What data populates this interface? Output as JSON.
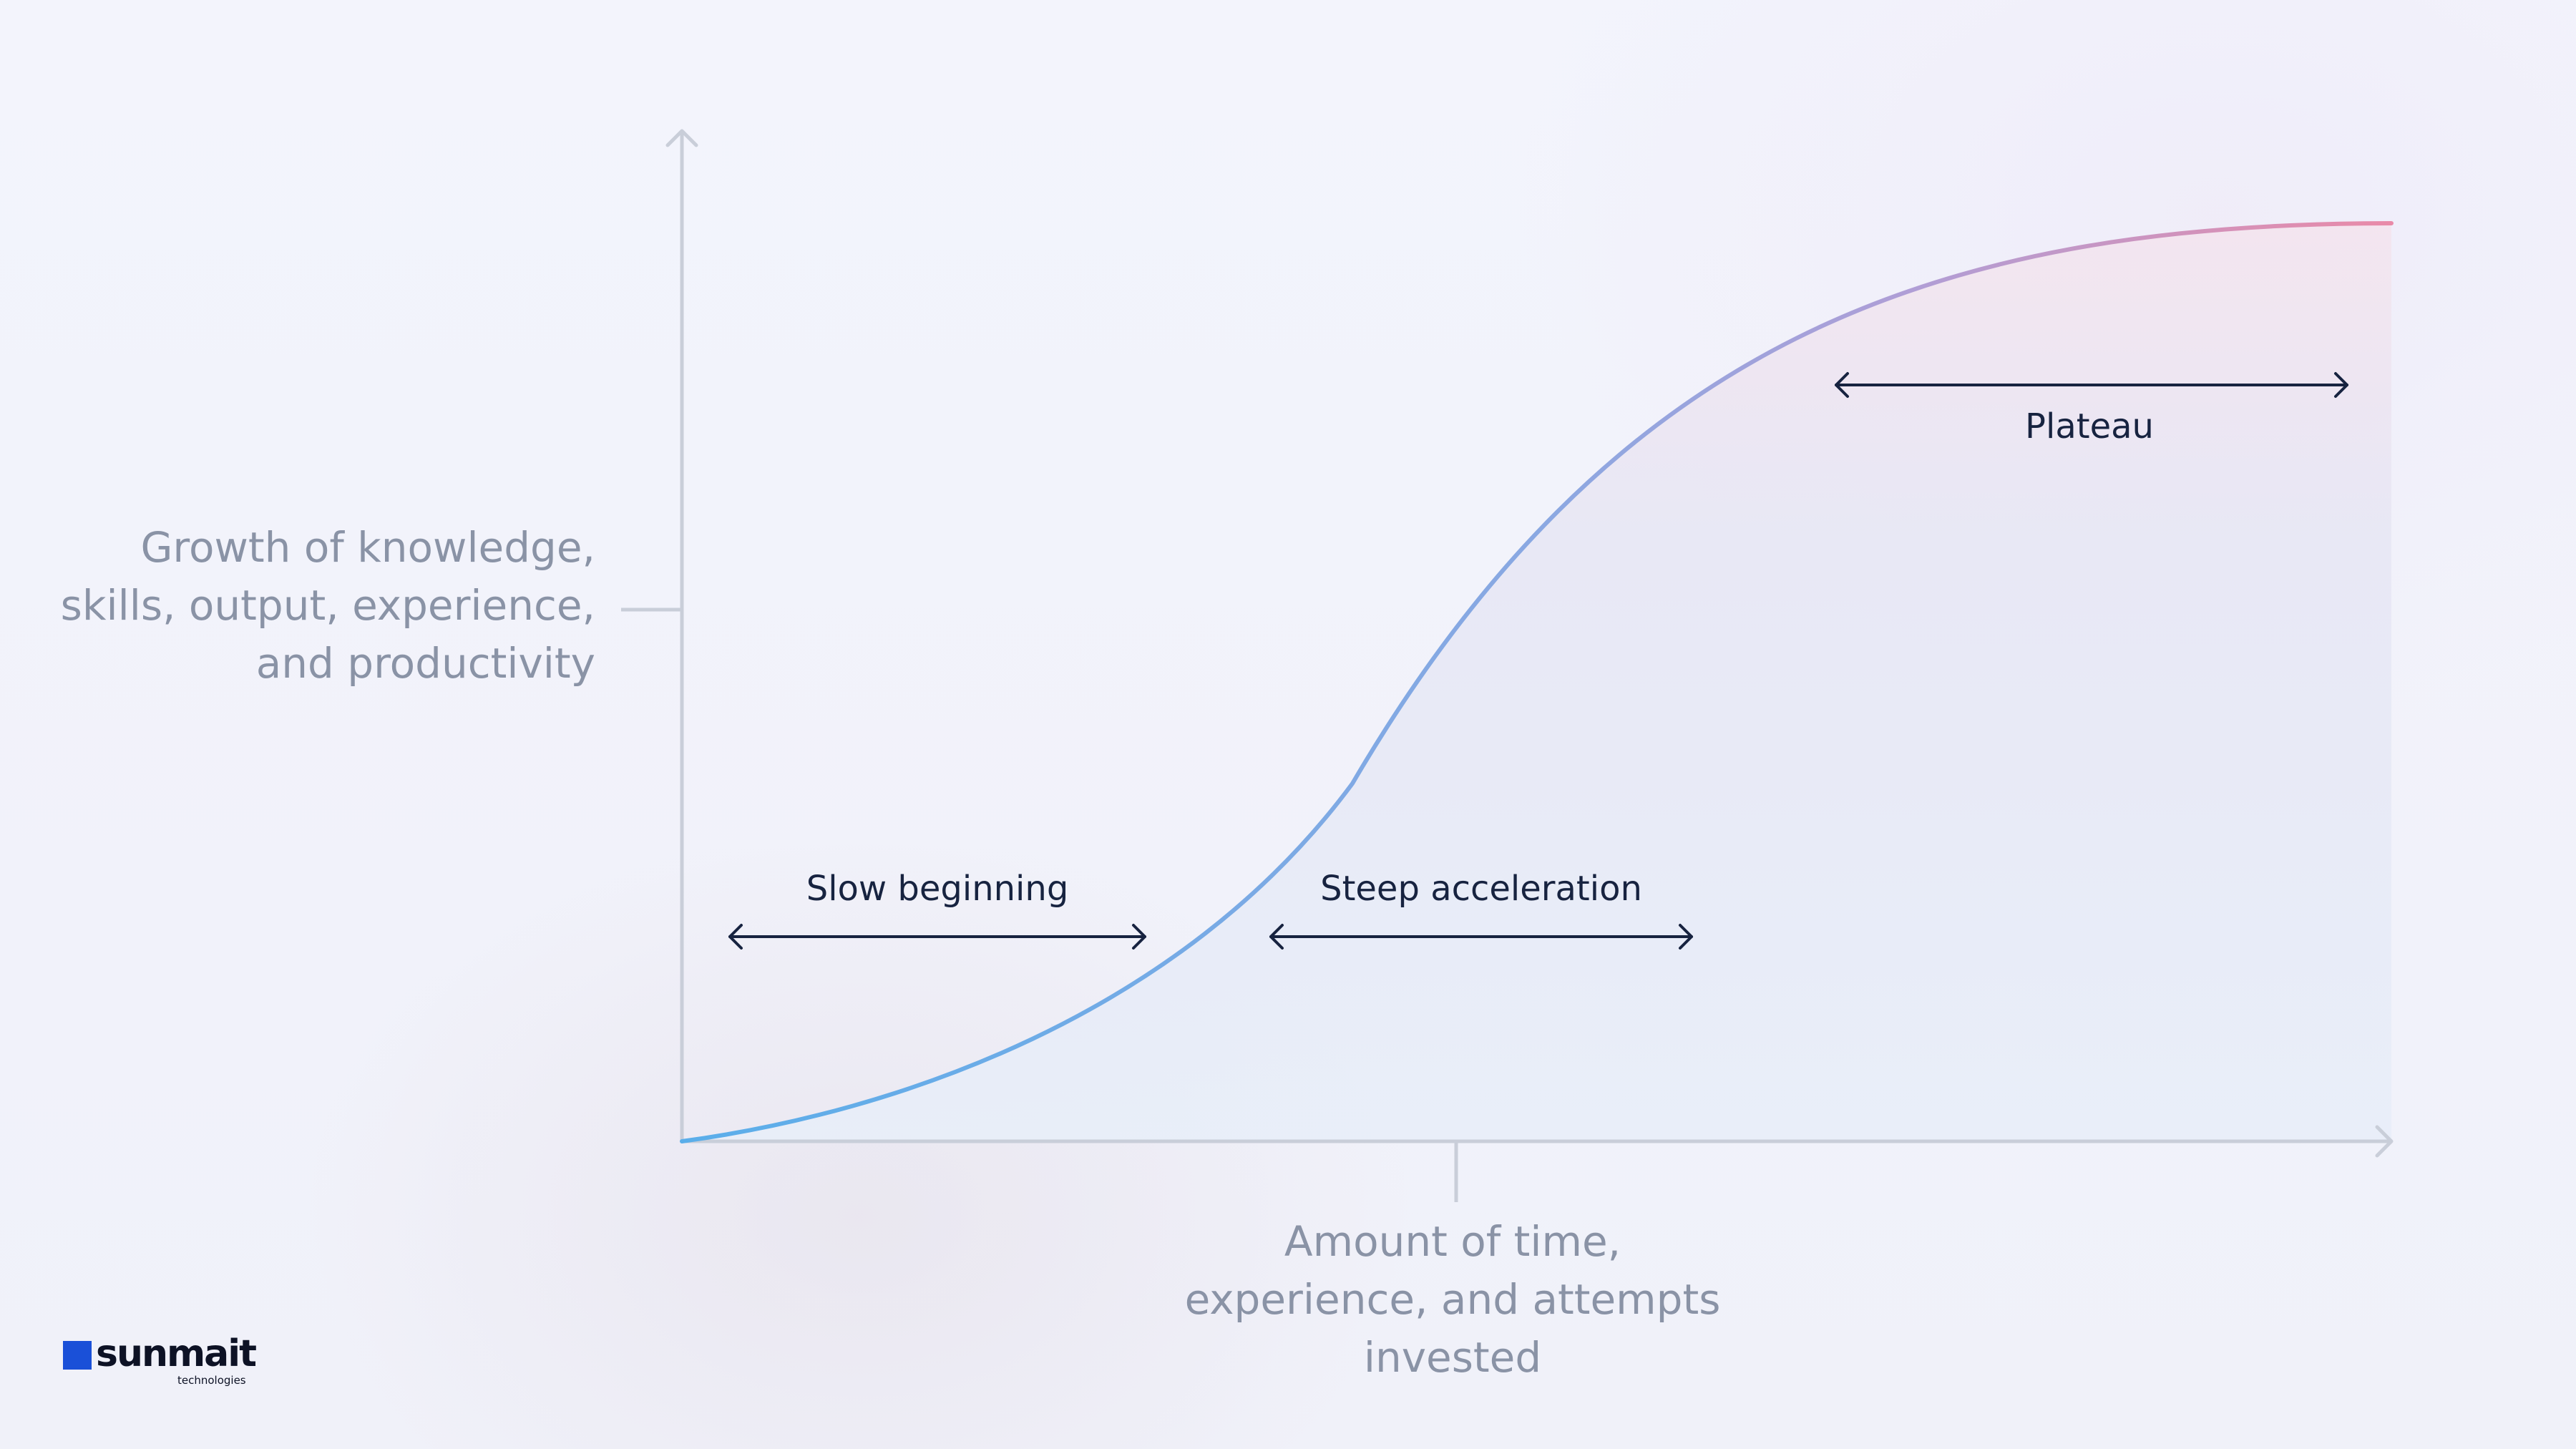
{
  "diagram": {
    "y_axis_label": "Growth of knowledge, skills, output, experience, and productivity",
    "y_axis_label_lines": [
      "Growth of knowledge,",
      "skills, output, experience,",
      "and productivity"
    ],
    "x_axis_label_lines": [
      "Amount of time,",
      "experience, and attempts",
      "invested"
    ],
    "phases": [
      {
        "label": "Slow beginning"
      },
      {
        "label": "Steep acceleration"
      },
      {
        "label": "Plateau"
      }
    ],
    "curve_shape": "s-curve",
    "colors": {
      "axis": "#c9ced9",
      "curve_start": "#5aaeea",
      "curve_mid": "#a3a6dc",
      "curve_end": "#e98aa8",
      "phase_arrow": "#172340",
      "axis_label_text": "#8a93a6",
      "phase_label_text": "#172340"
    }
  },
  "logo": {
    "name": "sunmait",
    "subtitle": "technologies",
    "color": "#1a50d8"
  }
}
